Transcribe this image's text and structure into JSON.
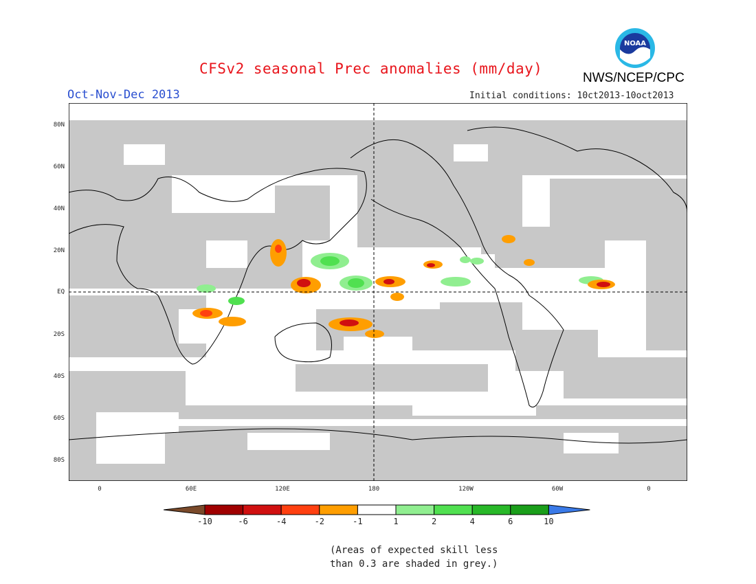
{
  "header": {
    "title": "CFSv2 seasonal Prec anomalies (mm/day)",
    "season": "Oct-Nov-Dec 2013",
    "initial_conditions": "Initial conditions: 10ct2013-10oct2013",
    "agency": "NWS/NCEP/CPC",
    "logo_text": "NOAA"
  },
  "map": {
    "lon_ticks": [
      "0",
      "60E",
      "120E",
      "180",
      "120W",
      "60W",
      "0"
    ],
    "lat_ticks": [
      "80N",
      "60N",
      "40N",
      "20N",
      "EQ",
      "20S",
      "40S",
      "60S",
      "80S"
    ],
    "skill_mask_color": "#c8c8c8",
    "background": "#ffffff"
  },
  "legend": {
    "labels": [
      "-10",
      "-6",
      "-4",
      "-2",
      "-1",
      "1",
      "2",
      "4",
      "6",
      "10"
    ],
    "colors": [
      "#7a4a2a",
      "#a00000",
      "#d01010",
      "#ff4010",
      "#ff9e00",
      "#ffffff",
      "#90ee90",
      "#50e050",
      "#28b828",
      "#1a9e1a",
      "#3a7ae8"
    ]
  },
  "note": {
    "line1": "(Areas of expected skill less",
    "line2": "than 0.3 are shaded in grey.)"
  }
}
